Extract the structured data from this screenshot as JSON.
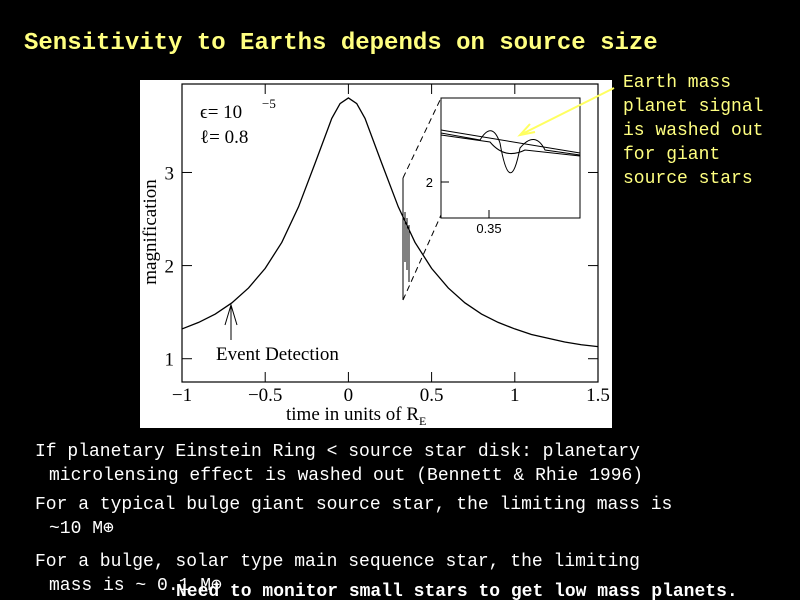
{
  "slide": {
    "title": "Sensitivity to Earths depends on source size",
    "note_lines": [
      "Earth mass",
      "planet signal",
      "is washed out",
      "for giant",
      "source stars"
    ],
    "bullets": [
      [
        "If planetary Einstein Ring < source star disk: planetary",
        "microlensing effect is washed out (Bennett & Rhie 1996)"
      ],
      [
        "For a typical bulge giant source star, the limiting mass is",
        "~10 M⊕"
      ],
      [
        "For a bulge, solar type main sequence star, the limiting",
        "mass is ~ 0.1 M⊕"
      ]
    ],
    "footer": "Need to monitor small stars to get low mass planets."
  },
  "chart_data": {
    "type": "line",
    "xlabel": "time in units of R",
    "xlabel_sub": "E",
    "ylabel": "magnification",
    "annotations": [
      "ϵ= 10",
      "−5",
      "ℓ= 0.8",
      "Event Detection"
    ],
    "x": [
      -1,
      -0.9,
      -0.8,
      -0.7,
      -0.6,
      -0.5,
      -0.4,
      -0.3,
      -0.2,
      -0.1,
      -0.05,
      0,
      0.05,
      0.1,
      0.2,
      0.3,
      0.4,
      0.5,
      0.6,
      0.7,
      0.8,
      0.9,
      1,
      1.1,
      1.2,
      1.3,
      1.4,
      1.5
    ],
    "series": [
      {
        "name": "magnification",
        "color": "#000000",
        "values": [
          1.32,
          1.39,
          1.48,
          1.6,
          1.76,
          1.97,
          2.25,
          2.63,
          3.1,
          3.58,
          3.74,
          3.8,
          3.74,
          3.58,
          3.1,
          2.63,
          2.25,
          1.97,
          1.76,
          1.6,
          1.48,
          1.39,
          1.32,
          1.26,
          1.22,
          1.18,
          1.15,
          1.13
        ]
      }
    ],
    "xlim": [
      -1,
      1.5
    ],
    "ylim": [
      0.75,
      3.95
    ],
    "xticks": [
      {
        "value": -1,
        "label": "−1"
      },
      {
        "value": -0.5,
        "label": "−0.5"
      },
      0,
      0.5,
      1,
      1.5
    ],
    "yticks": [
      1,
      2,
      3
    ],
    "inset": {
      "xticks": [
        0.35
      ],
      "yticks": [
        2
      ]
    }
  }
}
